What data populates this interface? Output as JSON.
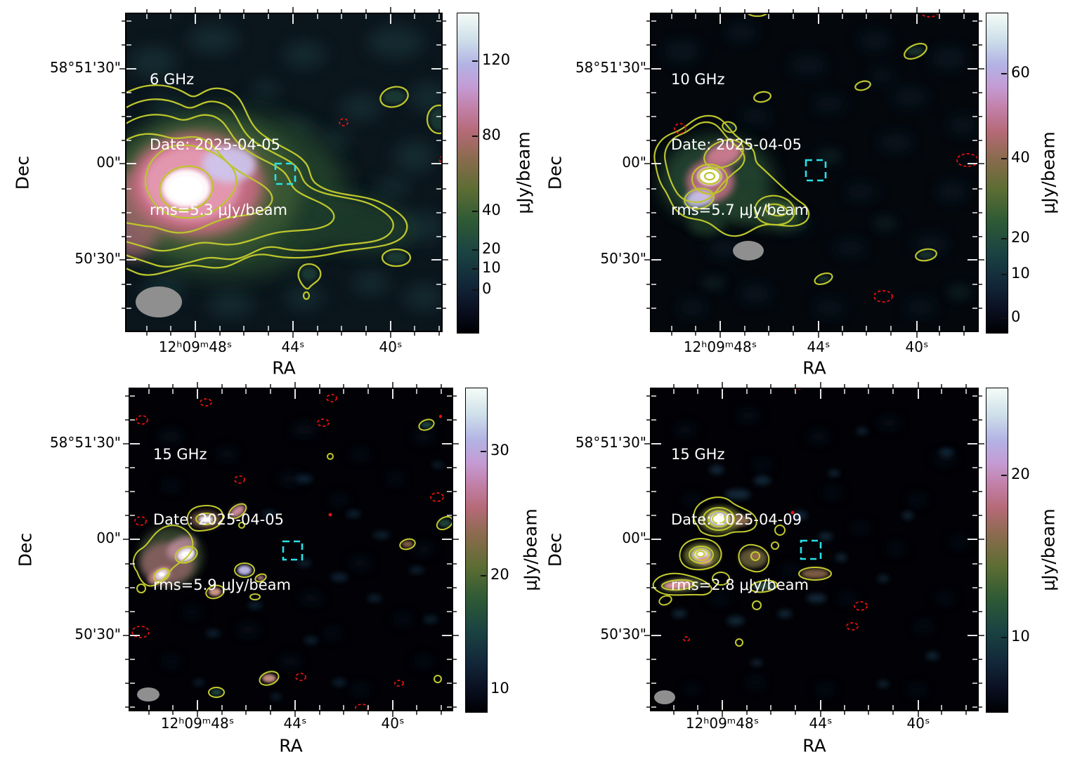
{
  "figure": {
    "description": "2x2 grid of VLA radio continuum maps of the same sky field at different frequencies and epochs",
    "axes": {
      "ra_label": "RA",
      "dec_label": "Dec",
      "ra_ticks": [
        "12ʰ09ᵐ48ˢ",
        "44ˢ",
        "40ˢ"
      ],
      "dec_ticks": [
        "58°51'30\"",
        "00\"",
        "50'30\""
      ]
    },
    "colorbar_label": "μJy/beam",
    "colors": {
      "positive_contour": "#bcc52d",
      "negative_contour": "#ee1111",
      "target_box": "#2ae0e8",
      "beam_ellipse": "#8f8f8f"
    }
  },
  "panels": [
    {
      "freq": "6 GHz",
      "date_line": "Date: 2025-04-05",
      "rms_line": "rms=5.3 μJy/beam",
      "colorbar_ticks": [
        "120",
        "80",
        "40",
        "20",
        "10",
        "0"
      ]
    },
    {
      "freq": "10 GHz",
      "date_line": "Date: 2025-04-05",
      "rms_line": "rms=5.7 μJy/beam",
      "colorbar_ticks": [
        "60",
        "40",
        "20",
        "10",
        "0"
      ]
    },
    {
      "freq": "15 GHz",
      "date_line": "Date: 2025-04-05",
      "rms_line": "rms=5.9 μJy/beam",
      "colorbar_ticks": [
        "30",
        "20",
        "10"
      ]
    },
    {
      "freq": "15 GHz",
      "date_line": "Date: 2025-04-09",
      "rms_line": "rms=2.8 μJy/beam",
      "colorbar_ticks": [
        "20",
        "10"
      ]
    }
  ],
  "chart_data": [
    {
      "type": "heatmap",
      "title": "6 GHz",
      "date": "2025-04-05",
      "rms_uJy_beam": 5.3,
      "x": {
        "label": "RA",
        "tick_labels": [
          "12h09m48s",
          "44s",
          "40s"
        ]
      },
      "y": {
        "label": "Dec",
        "tick_labels": [
          "58°51'30\"",
          "00\"",
          "50'30\""
        ]
      },
      "colorbar": {
        "label": "μJy/beam",
        "tick_values": [
          120,
          80,
          40,
          20,
          10,
          0
        ],
        "scale": "nonlinear (asinh-like)"
      },
      "overlays": {
        "positive_contours": "solid olive-yellow, ~7 nested levels",
        "negative_contours": "dashed red",
        "target_marker": "dashed cyan square near RA 12h09m44.5s Dec 58°51'02\"",
        "beam": "gray filled ellipse lower-left"
      },
      "content": "bright extended radio source in lower-left quadrant with long western tail; isolated contour islands upper-right and lower-middle"
    },
    {
      "type": "heatmap",
      "title": "10 GHz",
      "date": "2025-04-05",
      "rms_uJy_beam": 5.7,
      "x": {
        "label": "RA",
        "tick_labels": [
          "12h09m48s",
          "44s",
          "40s"
        ]
      },
      "y": {
        "label": "Dec",
        "tick_labels": [
          "58°51'30\"",
          "00\"",
          "50'30\""
        ]
      },
      "colorbar": {
        "label": "μJy/beam",
        "tick_values": [
          60,
          40,
          20,
          10,
          0
        ],
        "scale": "nonlinear (asinh-like)"
      },
      "overlays": {
        "positive_contours": "solid olive-yellow",
        "negative_contours": "dashed red",
        "target_marker": "dashed cyan square",
        "beam": "gray filled ellipse mid-left"
      },
      "content": "compact bright double source lower-left with green extension; scattered small contour islands"
    },
    {
      "type": "heatmap",
      "title": "15 GHz",
      "date": "2025-04-05",
      "rms_uJy_beam": 5.9,
      "x": {
        "label": "RA",
        "tick_labels": [
          "12h09m48s",
          "44s",
          "40s"
        ]
      },
      "y": {
        "label": "Dec",
        "tick_labels": [
          "58°51'30\"",
          "00\"",
          "50'30\""
        ]
      },
      "colorbar": {
        "label": "μJy/beam",
        "tick_values": [
          30,
          20,
          10
        ],
        "scale": "nonlinear (asinh-like)"
      },
      "overlays": {
        "positive_contours": "solid olive-yellow",
        "negative_contours": "dashed red, many small ellipses",
        "target_marker": "dashed cyan square",
        "beam": "small gray ellipse lower-left"
      },
      "content": "cluster of compact knots lower-left (S-shaped chain); faint knots scattered across field"
    },
    {
      "type": "heatmap",
      "title": "15 GHz",
      "date": "2025-04-09",
      "rms_uJy_beam": 2.8,
      "x": {
        "label": "RA",
        "tick_labels": [
          "12h09m48s",
          "44s",
          "40s"
        ]
      },
      "y": {
        "label": "Dec",
        "tick_labels": [
          "58°51'30\"",
          "00\"",
          "50'30\""
        ]
      },
      "colorbar": {
        "label": "μJy/beam",
        "tick_values": [
          20,
          10
        ],
        "scale": "nonlinear (asinh-like)"
      },
      "overlays": {
        "positive_contours": "solid olive-yellow, multiple nested rings on compact knots",
        "negative_contours": "dashed red",
        "target_marker": "dashed cyan square",
        "beam": "small gray ellipse lower-left"
      },
      "content": "two bright compact knots with nested contour rings, SW elongated filament, several small islands"
    }
  ]
}
